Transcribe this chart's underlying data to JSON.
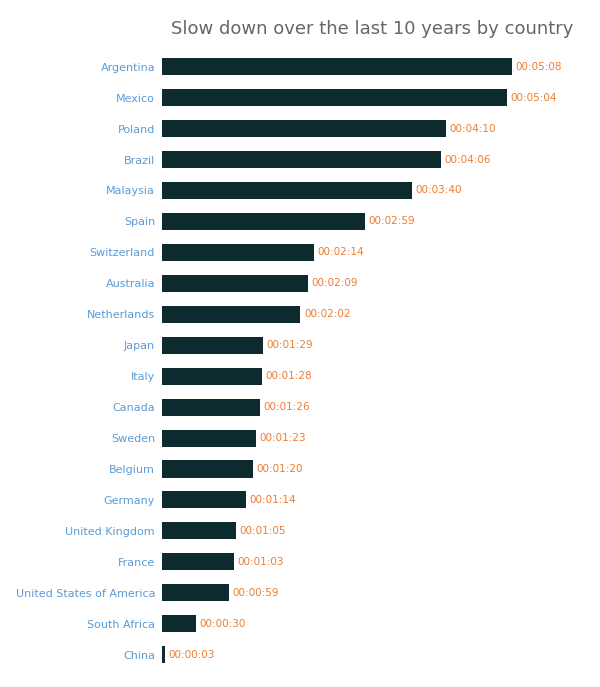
{
  "title": "Slow down over the last 10 years by country",
  "title_color": "#666666",
  "bar_color": "#0d2b2e",
  "label_color": "#5b9bd5",
  "value_color": "#ed7d31",
  "background_color": "#ffffff",
  "categories": [
    "Argentina",
    "Mexico",
    "Poland",
    "Brazil",
    "Malaysia",
    "Spain",
    "Switzerland",
    "Australia",
    "Netherlands",
    "Japan",
    "Italy",
    "Canada",
    "Sweden",
    "Belgium",
    "Germany",
    "United Kingdom",
    "France",
    "United States of America",
    "South Africa",
    "China"
  ],
  "values_seconds": [
    308,
    304,
    250,
    246,
    220,
    179,
    134,
    129,
    122,
    89,
    88,
    86,
    83,
    80,
    74,
    65,
    63,
    59,
    30,
    3
  ],
  "labels": [
    "00:05:08",
    "00:05:04",
    "00:04:10",
    "00:04:06",
    "00:03:40",
    "00:02:59",
    "00:02:14",
    "00:02:09",
    "00:02:02",
    "00:01:29",
    "00:01:28",
    "00:01:26",
    "00:01:23",
    "00:01:20",
    "00:01:14",
    "00:01:05",
    "00:01:03",
    "00:00:59",
    "00:00:30",
    "00:00:03"
  ],
  "figsize": [
    6.0,
    6.87
  ],
  "dpi": 100,
  "bar_height": 0.55,
  "xlim": [
    0,
    370
  ],
  "title_fontsize": 13,
  "label_fontsize": 8,
  "value_fontsize": 7.5
}
